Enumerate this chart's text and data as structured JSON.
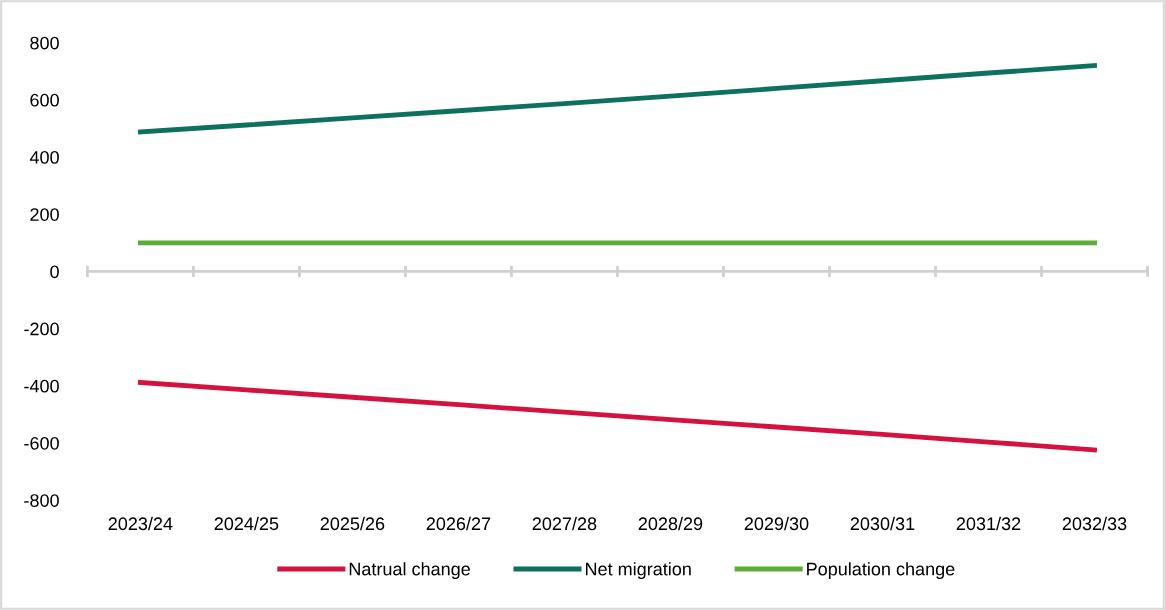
{
  "chart_data": {
    "type": "line",
    "categories": [
      "2023/24",
      "2024/25",
      "2025/26",
      "2026/27",
      "2027/28",
      "2028/29",
      "2029/30",
      "2030/31",
      "2031/32",
      "2032/33"
    ],
    "series": [
      {
        "name": "Natrual change",
        "color": "#d4123f",
        "values": [
          -388,
          -414,
          -440,
          -466,
          -492,
          -518,
          -544,
          -570,
          -597,
          -624
        ]
      },
      {
        "name": "Net migration",
        "color": "#0e7160",
        "values": [
          488,
          512,
          537,
          562,
          587,
          613,
          640,
          667,
          694,
          720
        ]
      },
      {
        "name": "Population change",
        "color": "#5aad37",
        "values": [
          100,
          100,
          100,
          100,
          100,
          100,
          100,
          100,
          100,
          100
        ]
      }
    ],
    "ylim": [
      -800,
      800
    ],
    "yticks": [
      -800,
      -600,
      -400,
      -200,
      0,
      200,
      400,
      600,
      800
    ],
    "legend": "bottom",
    "marker": "none",
    "line_style": "solid"
  }
}
